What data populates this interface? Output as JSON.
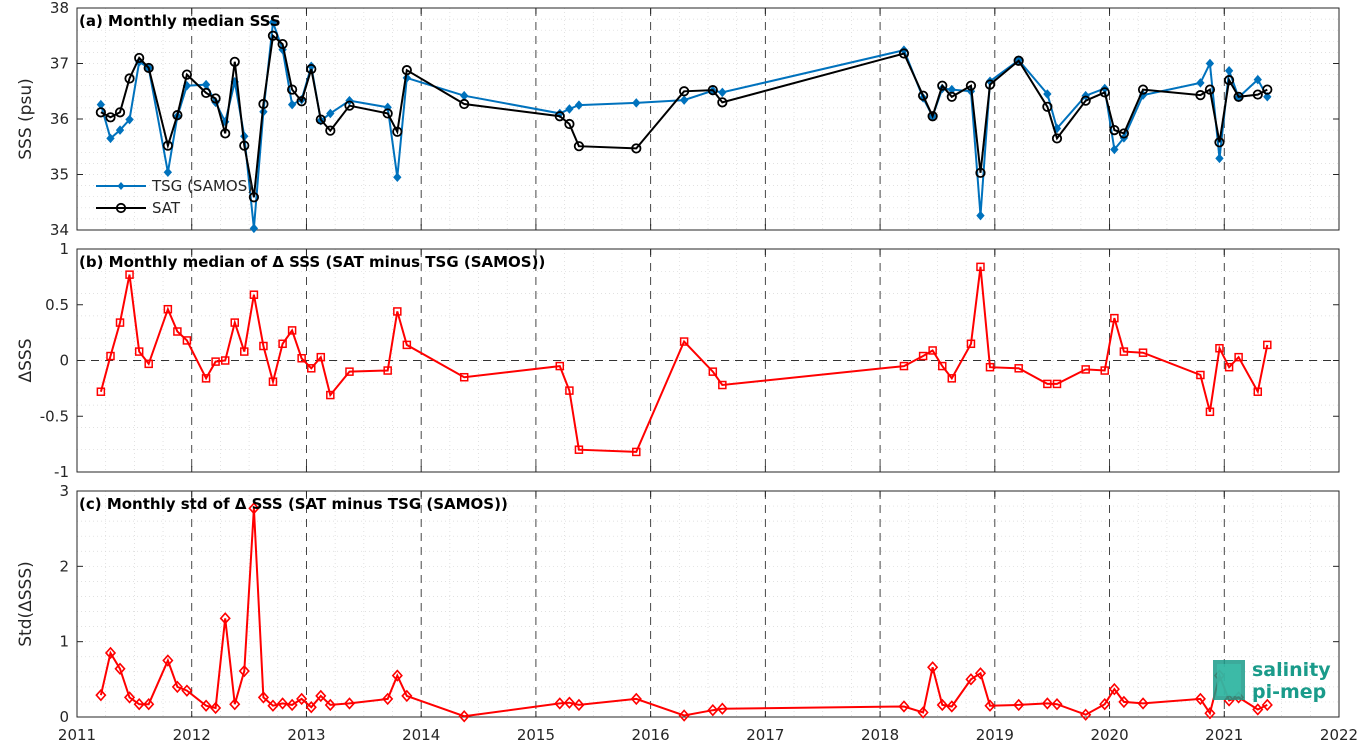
{
  "x_ticks": [
    "2011",
    "2012",
    "2013",
    "2014",
    "2015",
    "2016",
    "2017",
    "2018",
    "2019",
    "2020",
    "2021",
    "2022"
  ],
  "logo": {
    "line1": "salinity",
    "line2": "pi-mep"
  },
  "colors": {
    "tsg": "#0072BD",
    "sat": "#000000",
    "delta": "#FF0000",
    "logo": "#1a9b8a"
  },
  "chart_data": [
    {
      "type": "line",
      "title": "(a) Monthly median SSS",
      "ylabel": "SSS (psu)",
      "xlim": [
        2011,
        2022
      ],
      "ylim": [
        34,
        38
      ],
      "y_ticks": [
        "34",
        "35",
        "36",
        "37",
        "38"
      ],
      "grid": true,
      "legend_position": "bottom-left",
      "series": [
        {
          "name": "TSG (SAMOS)",
          "marker": "diamond-filled",
          "color": "#0072BD",
          "x": [
            2011.208,
            2011.292,
            2011.375,
            2011.458,
            2011.542,
            2011.625,
            2011.792,
            2011.875,
            2011.958,
            2012.125,
            2012.208,
            2012.292,
            2012.375,
            2012.458,
            2012.542,
            2012.625,
            2012.708,
            2012.792,
            2012.875,
            2012.958,
            2013.042,
            2013.125,
            2013.208,
            2013.375,
            2013.708,
            2013.792,
            2013.875,
            2014.375,
            2015.208,
            2015.292,
            2015.375,
            2015.875,
            2016.292,
            2016.542,
            2016.625,
            2018.208,
            2018.375,
            2018.458,
            2018.542,
            2018.625,
            2018.792,
            2018.875,
            2018.958,
            2019.208,
            2019.458,
            2019.542,
            2019.792,
            2019.958,
            2020.042,
            2020.125,
            2020.292,
            2020.792,
            2020.875,
            2020.958,
            2021.042,
            2021.125,
            2021.292,
            2021.375
          ],
          "values": [
            36.26,
            35.65,
            35.8,
            35.99,
            37.03,
            36.92,
            35.04,
            36.05,
            36.6,
            36.62,
            36.3,
            35.95,
            36.67,
            35.69,
            34.03,
            36.13,
            37.74,
            37.25,
            36.26,
            36.35,
            36.95,
            35.97,
            36.1,
            36.33,
            36.21,
            34.95,
            36.74,
            36.42,
            36.1,
            36.18,
            36.25,
            36.29,
            36.34,
            36.51,
            36.48,
            37.24,
            36.38,
            36.05,
            36.55,
            36.53,
            36.5,
            34.26,
            36.68,
            37.06,
            36.45,
            35.83,
            36.42,
            36.55,
            35.45,
            35.66,
            36.43,
            36.65,
            37.0,
            35.29,
            36.87,
            36.39,
            36.71,
            36.4
          ]
        },
        {
          "name": "SAT",
          "marker": "circle-open",
          "color": "#000000",
          "x": [
            2011.208,
            2011.292,
            2011.375,
            2011.458,
            2011.542,
            2011.625,
            2011.792,
            2011.875,
            2011.958,
            2012.125,
            2012.208,
            2012.292,
            2012.375,
            2012.458,
            2012.542,
            2012.625,
            2012.708,
            2012.792,
            2012.875,
            2012.958,
            2013.042,
            2013.125,
            2013.208,
            2013.375,
            2013.708,
            2013.792,
            2013.875,
            2014.375,
            2015.208,
            2015.292,
            2015.375,
            2015.875,
            2016.292,
            2016.542,
            2016.625,
            2018.208,
            2018.375,
            2018.458,
            2018.542,
            2018.625,
            2018.792,
            2018.875,
            2018.958,
            2019.208,
            2019.458,
            2019.542,
            2019.792,
            2019.958,
            2020.042,
            2020.125,
            2020.292,
            2020.792,
            2020.875,
            2020.958,
            2021.042,
            2021.125,
            2021.292,
            2021.375
          ],
          "values": [
            36.12,
            36.03,
            36.12,
            36.73,
            37.1,
            36.92,
            35.52,
            36.07,
            36.8,
            36.47,
            36.37,
            35.74,
            37.03,
            35.52,
            34.59,
            36.27,
            37.5,
            37.35,
            36.53,
            36.32,
            36.9,
            35.99,
            35.79,
            36.24,
            36.1,
            35.77,
            36.88,
            36.27,
            36.05,
            35.91,
            35.51,
            35.47,
            36.5,
            36.52,
            36.3,
            37.18,
            36.42,
            36.05,
            36.6,
            36.4,
            36.6,
            35.03,
            36.62,
            37.05,
            36.22,
            35.65,
            36.33,
            36.48,
            35.8,
            35.74,
            36.53,
            36.43,
            36.53,
            35.58,
            36.7,
            36.4,
            36.44,
            36.53
          ]
        }
      ]
    },
    {
      "type": "line",
      "title": "(b) Monthly median of Δ SSS (SAT minus TSG (SAMOS))",
      "ylabel": "ΔSSS",
      "xlim": [
        2011,
        2022
      ],
      "ylim": [
        -1,
        1
      ],
      "y_ticks": [
        "-1",
        "-0.5",
        "0",
        "0.5",
        "1"
      ],
      "grid": true,
      "series": [
        {
          "marker": "square-open",
          "color": "#FF0000",
          "x": [
            2011.208,
            2011.292,
            2011.375,
            2011.458,
            2011.542,
            2011.625,
            2011.792,
            2011.875,
            2011.958,
            2012.125,
            2012.208,
            2012.292,
            2012.375,
            2012.458,
            2012.542,
            2012.625,
            2012.708,
            2012.792,
            2012.875,
            2012.958,
            2013.042,
            2013.125,
            2013.208,
            2013.375,
            2013.708,
            2013.792,
            2013.875,
            2014.375,
            2015.208,
            2015.292,
            2015.375,
            2015.875,
            2016.292,
            2016.542,
            2016.625,
            2018.208,
            2018.375,
            2018.458,
            2018.542,
            2018.625,
            2018.792,
            2018.875,
            2018.958,
            2019.208,
            2019.458,
            2019.542,
            2019.792,
            2019.958,
            2020.042,
            2020.125,
            2020.292,
            2020.792,
            2020.875,
            2020.958,
            2021.042,
            2021.125,
            2021.292,
            2021.375
          ],
          "values": [
            -0.28,
            0.04,
            0.34,
            0.77,
            0.08,
            -0.03,
            0.46,
            0.26,
            0.18,
            -0.16,
            -0.01,
            0.0,
            0.34,
            0.08,
            0.59,
            0.13,
            -0.19,
            0.15,
            0.27,
            0.02,
            -0.07,
            0.03,
            -0.31,
            -0.1,
            -0.09,
            0.44,
            0.14,
            -0.15,
            -0.05,
            -0.27,
            -0.8,
            -0.82,
            0.17,
            -0.1,
            -0.22,
            -0.05,
            0.04,
            0.09,
            -0.05,
            -0.16,
            0.15,
            0.84,
            -0.06,
            -0.07,
            -0.21,
            -0.21,
            -0.08,
            -0.09,
            0.38,
            0.08,
            0.07,
            -0.13,
            -0.46,
            0.11,
            -0.06,
            0.03,
            -0.28,
            0.14
          ]
        }
      ]
    },
    {
      "type": "line",
      "title": "(c) Monthly std of Δ SSS (SAT minus TSG (SAMOS))",
      "ylabel": "Std(ΔSSS)",
      "xlim": [
        2011,
        2022
      ],
      "ylim": [
        0,
        3
      ],
      "y_ticks": [
        "0",
        "1",
        "2",
        "3"
      ],
      "grid": true,
      "series": [
        {
          "marker": "diamond-open",
          "color": "#FF0000",
          "x": [
            2011.208,
            2011.292,
            2011.375,
            2011.458,
            2011.542,
            2011.625,
            2011.792,
            2011.875,
            2011.958,
            2012.125,
            2012.208,
            2012.292,
            2012.375,
            2012.458,
            2012.542,
            2012.625,
            2012.708,
            2012.792,
            2012.875,
            2012.958,
            2013.042,
            2013.125,
            2013.208,
            2013.375,
            2013.708,
            2013.792,
            2013.875,
            2014.375,
            2015.208,
            2015.292,
            2015.375,
            2015.875,
            2016.292,
            2016.542,
            2016.625,
            2018.208,
            2018.375,
            2018.458,
            2018.542,
            2018.625,
            2018.792,
            2018.875,
            2018.958,
            2019.208,
            2019.458,
            2019.542,
            2019.792,
            2019.958,
            2020.042,
            2020.125,
            2020.292,
            2020.792,
            2020.875,
            2020.958,
            2021.042,
            2021.125,
            2021.292,
            2021.375
          ],
          "values": [
            0.29,
            0.85,
            0.64,
            0.26,
            0.17,
            0.17,
            0.75,
            0.4,
            0.35,
            0.15,
            0.12,
            1.31,
            0.17,
            0.61,
            2.77,
            0.26,
            0.15,
            0.18,
            0.16,
            0.24,
            0.13,
            0.28,
            0.16,
            0.18,
            0.24,
            0.55,
            0.28,
            0.01,
            0.18,
            0.19,
            0.16,
            0.24,
            0.02,
            0.09,
            0.11,
            0.14,
            0.06,
            0.66,
            0.16,
            0.14,
            0.5,
            0.58,
            0.15,
            0.16,
            0.18,
            0.17,
            0.03,
            0.17,
            0.37,
            0.2,
            0.18,
            0.24,
            0.05,
            0.55,
            0.22,
            0.26,
            0.1,
            0.16
          ]
        }
      ]
    }
  ]
}
